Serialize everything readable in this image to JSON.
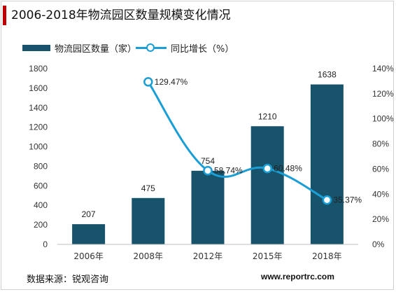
{
  "title": "2006-2018年物流园区数量规模变化情况",
  "source": "数据来源：锐观咨询",
  "website": "www.reportrc.com",
  "colors": {
    "bar": "#17546c",
    "line": "#1a9ed5",
    "accent": "#c00000"
  },
  "chart_data": {
    "type": "bar",
    "combo_with": "line",
    "title": "2006-2018年物流园区数量规模变化情况",
    "categories": [
      "2006年",
      "2008年",
      "2012年",
      "2015年",
      "2018年"
    ],
    "series": [
      {
        "name": "物流园区数量（家）",
        "type": "bar",
        "axis": "left",
        "values": [
          207,
          475,
          754,
          1210,
          1638
        ],
        "labels": [
          "207",
          "475",
          "754",
          "1210",
          "1638"
        ]
      },
      {
        "name": "同比增长（%）",
        "type": "line",
        "axis": "right",
        "smooth": true,
        "values": [
          null,
          129.47,
          58.74,
          60.48,
          35.37
        ],
        "labels": [
          "",
          "129.47%",
          "58.74%",
          "60.48%",
          "35.37%"
        ]
      }
    ],
    "y_left": {
      "min": 0,
      "max": 1800,
      "step": 200,
      "ticks": [
        "0",
        "200",
        "400",
        "600",
        "800",
        "1000",
        "1200",
        "1400",
        "1600",
        "1800"
      ]
    },
    "y_right": {
      "min": 0,
      "max": 140,
      "step": 20,
      "ticks": [
        "0%",
        "20%",
        "40%",
        "60%",
        "80%",
        "100%",
        "120%",
        "140%"
      ]
    },
    "grid": false,
    "legend_position": "top-left"
  }
}
